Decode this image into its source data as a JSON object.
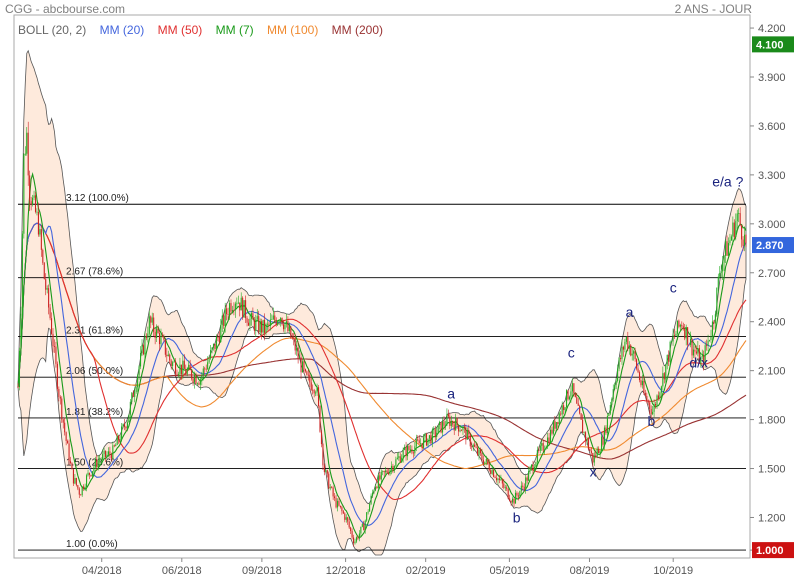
{
  "header": {
    "title": "CGG - abcbourse.com",
    "period": "2 ANS - JOUR"
  },
  "legend": [
    {
      "label": "BOLL (20, 2)",
      "color": "#666666"
    },
    {
      "label": "MM (20)",
      "color": "#4466dd"
    },
    {
      "label": "MM (50)",
      "color": "#e03030"
    },
    {
      "label": "MM (7)",
      "color": "#1a9a1a"
    },
    {
      "label": "MM (100)",
      "color": "#f08a30"
    },
    {
      "label": "MM (200)",
      "color": "#993333"
    }
  ],
  "chart_data": {
    "type": "candlestick",
    "ylim": [
      0.97,
      4.28
    ],
    "y_ticks": [
      "4.200",
      "3.900",
      "3.600",
      "3.300",
      "3.000",
      "2.700",
      "2.400",
      "2.100",
      "1.800",
      "1.500",
      "1.200",
      "1.000"
    ],
    "x_ticks": [
      "04/2018",
      "06/2018",
      "09/2018",
      "12/2018",
      "02/2019",
      "05/2019",
      "08/2019",
      "10/2019"
    ],
    "price_badges": [
      {
        "value": "4.100",
        "color": "#1a8a1a"
      },
      {
        "value": "2.870",
        "color": "#3366dd"
      },
      {
        "value": "1.000",
        "color": "#cc1111"
      }
    ],
    "fibonacci_levels": [
      {
        "label": "3.12  (100.0%)",
        "value": 3.12
      },
      {
        "label": "2.67  (78.6%)",
        "value": 2.67
      },
      {
        "label": "2.31  (61.8%)",
        "value": 2.31
      },
      {
        "label": "2.06  (50.0%)",
        "value": 2.06
      },
      {
        "label": "1.81  (38.2%)",
        "value": 1.81
      },
      {
        "label": "1.50  (23.6%)",
        "value": 1.5
      },
      {
        "label": "1.00  (0.0%)",
        "value": 1.0
      }
    ],
    "wave_labels": [
      {
        "text": "a",
        "t": 0.595,
        "price": 1.93
      },
      {
        "text": "b",
        "t": 0.685,
        "price": 1.17
      },
      {
        "text": "c",
        "t": 0.76,
        "price": 2.18
      },
      {
        "text": "x",
        "t": 0.79,
        "price": 1.45
      },
      {
        "text": "a",
        "t": 0.84,
        "price": 2.43
      },
      {
        "text": "b",
        "t": 0.87,
        "price": 1.76
      },
      {
        "text": "c",
        "t": 0.9,
        "price": 2.58
      },
      {
        "text": "d/x",
        "t": 0.935,
        "price": 2.12
      },
      {
        "text": "e/a ?",
        "t": 0.975,
        "price": 3.23
      }
    ],
    "price_path": [
      {
        "t": 0.0,
        "price": 2.0
      },
      {
        "t": 0.004,
        "price": 2.5
      },
      {
        "t": 0.008,
        "price": 3.4
      },
      {
        "t": 0.012,
        "price": 3.55
      },
      {
        "t": 0.016,
        "price": 3.2
      },
      {
        "t": 0.022,
        "price": 3.1
      },
      {
        "t": 0.028,
        "price": 3.0
      },
      {
        "t": 0.035,
        "price": 2.7
      },
      {
        "t": 0.045,
        "price": 2.4
      },
      {
        "t": 0.055,
        "price": 2.0
      },
      {
        "t": 0.065,
        "price": 1.7
      },
      {
        "t": 0.075,
        "price": 1.45
      },
      {
        "t": 0.085,
        "price": 1.35
      },
      {
        "t": 0.095,
        "price": 1.45
      },
      {
        "t": 0.11,
        "price": 1.55
      },
      {
        "t": 0.13,
        "price": 1.6
      },
      {
        "t": 0.15,
        "price": 1.8
      },
      {
        "t": 0.17,
        "price": 2.2
      },
      {
        "t": 0.18,
        "price": 2.4
      },
      {
        "t": 0.195,
        "price": 2.3
      },
      {
        "t": 0.21,
        "price": 2.15
      },
      {
        "t": 0.23,
        "price": 2.1
      },
      {
        "t": 0.25,
        "price": 2.05
      },
      {
        "t": 0.27,
        "price": 2.25
      },
      {
        "t": 0.29,
        "price": 2.5
      },
      {
        "t": 0.3,
        "price": 2.55
      },
      {
        "t": 0.32,
        "price": 2.4
      },
      {
        "t": 0.34,
        "price": 2.35
      },
      {
        "t": 0.36,
        "price": 2.45
      },
      {
        "t": 0.38,
        "price": 2.25
      },
      {
        "t": 0.395,
        "price": 2.05
      },
      {
        "t": 0.41,
        "price": 2.0
      },
      {
        "t": 0.42,
        "price": 1.5
      },
      {
        "t": 0.435,
        "price": 1.3
      },
      {
        "t": 0.45,
        "price": 1.2
      },
      {
        "t": 0.462,
        "price": 1.05
      },
      {
        "t": 0.475,
        "price": 1.15
      },
      {
        "t": 0.49,
        "price": 1.4
      },
      {
        "t": 0.51,
        "price": 1.5
      },
      {
        "t": 0.53,
        "price": 1.6
      },
      {
        "t": 0.55,
        "price": 1.65
      },
      {
        "t": 0.57,
        "price": 1.7
      },
      {
        "t": 0.59,
        "price": 1.8
      },
      {
        "t": 0.61,
        "price": 1.75
      },
      {
        "t": 0.63,
        "price": 1.6
      },
      {
        "t": 0.65,
        "price": 1.5
      },
      {
        "t": 0.665,
        "price": 1.4
      },
      {
        "t": 0.68,
        "price": 1.3
      },
      {
        "t": 0.695,
        "price": 1.4
      },
      {
        "t": 0.71,
        "price": 1.55
      },
      {
        "t": 0.73,
        "price": 1.7
      },
      {
        "t": 0.75,
        "price": 1.9
      },
      {
        "t": 0.76,
        "price": 2.0
      },
      {
        "t": 0.775,
        "price": 1.75
      },
      {
        "t": 0.79,
        "price": 1.55
      },
      {
        "t": 0.805,
        "price": 1.7
      },
      {
        "t": 0.82,
        "price": 2.05
      },
      {
        "t": 0.835,
        "price": 2.3
      },
      {
        "t": 0.845,
        "price": 2.2
      },
      {
        "t": 0.86,
        "price": 1.95
      },
      {
        "t": 0.872,
        "price": 1.85
      },
      {
        "t": 0.885,
        "price": 2.05
      },
      {
        "t": 0.9,
        "price": 2.3
      },
      {
        "t": 0.912,
        "price": 2.4
      },
      {
        "t": 0.925,
        "price": 2.25
      },
      {
        "t": 0.94,
        "price": 2.15
      },
      {
        "t": 0.955,
        "price": 2.4
      },
      {
        "t": 0.965,
        "price": 2.75
      },
      {
        "t": 0.978,
        "price": 2.9
      },
      {
        "t": 0.988,
        "price": 3.05
      },
      {
        "t": 0.995,
        "price": 2.95
      },
      {
        "t": 1.0,
        "price": 2.87
      }
    ]
  }
}
